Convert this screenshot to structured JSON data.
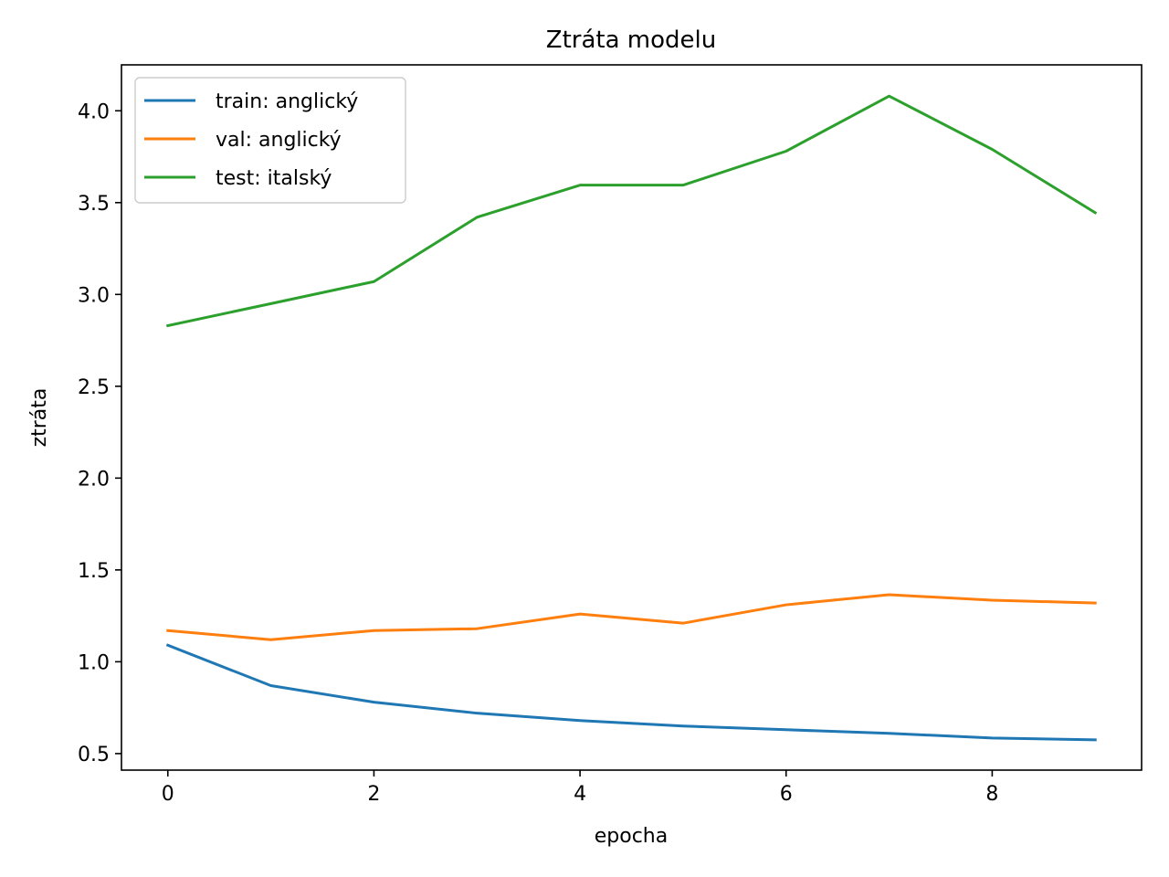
{
  "chart_data": {
    "type": "line",
    "title": "Ztráta modelu",
    "xlabel": "epocha",
    "ylabel": "ztráta",
    "xlim": [
      -0.45,
      9.45
    ],
    "ylim": [
      0.41,
      4.25
    ],
    "x_ticks": [
      0,
      2,
      4,
      6,
      8
    ],
    "x_tick_labels": [
      "0",
      "2",
      "4",
      "6",
      "8"
    ],
    "y_ticks": [
      0.5,
      1.0,
      1.5,
      2.0,
      2.5,
      3.0,
      3.5,
      4.0
    ],
    "y_tick_labels": [
      "0.5",
      "1.0",
      "1.5",
      "2.0",
      "2.5",
      "3.0",
      "3.5",
      "4.0"
    ],
    "grid": false,
    "legend_position": "top-left",
    "x": [
      0,
      1,
      2,
      3,
      4,
      5,
      6,
      7,
      8,
      9
    ],
    "series": [
      {
        "name": "train: anglický",
        "color": "#1f77b4",
        "values": [
          1.09,
          0.87,
          0.78,
          0.72,
          0.68,
          0.65,
          0.63,
          0.61,
          0.585,
          0.575
        ]
      },
      {
        "name": "val: anglický",
        "color": "#ff7f0e",
        "values": [
          1.17,
          1.12,
          1.17,
          1.18,
          1.26,
          1.21,
          1.31,
          1.365,
          1.335,
          1.32
        ]
      },
      {
        "name": "test: italský",
        "color": "#2ca02c",
        "values": [
          2.83,
          2.95,
          3.07,
          3.42,
          3.595,
          3.595,
          3.78,
          4.08,
          3.79,
          3.445
        ]
      }
    ]
  }
}
